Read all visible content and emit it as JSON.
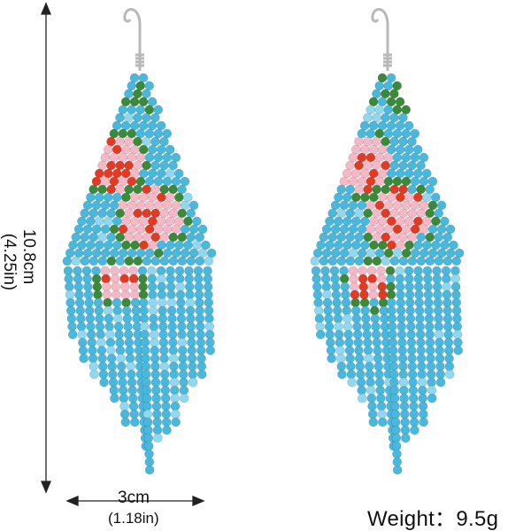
{
  "dimensions": {
    "height_cm": "10.8cm",
    "height_in": "(4.25in)",
    "width_cm": "3cm",
    "width_in": "(1.18in)"
  },
  "weight_label": "Weight：9.5g",
  "colors": {
    "bead_blue": "#4ab8dc",
    "bead_blue_light": "#8fd8ef",
    "leaf_green": "#3a8a3a",
    "flower_pink": "#f4b8c6",
    "flower_red": "#e33a24",
    "hook_silver": "#b8b8b8"
  }
}
